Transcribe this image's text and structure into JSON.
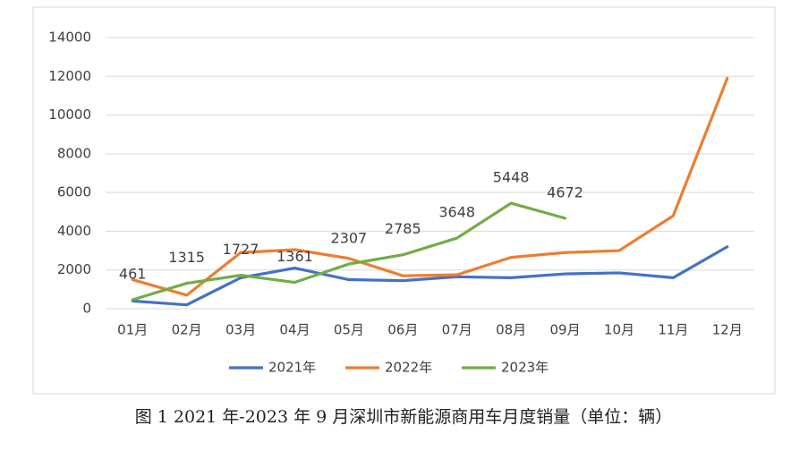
{
  "chart_data": {
    "type": "line",
    "caption": "图 1 2021 年-2023 年 9 月深圳市新能源商用车月度销量（单位：辆）",
    "categories": [
      "01月",
      "02月",
      "03月",
      "04月",
      "05月",
      "06月",
      "07月",
      "08月",
      "09月",
      "10月",
      "11月",
      "12月"
    ],
    "series": [
      {
        "name": "2021年",
        "color": "#4472c4",
        "values": [
          400,
          200,
          1600,
          2100,
          1500,
          1450,
          1650,
          1600,
          1800,
          1850,
          1600,
          3200
        ]
      },
      {
        "name": "2022年",
        "color": "#ed7d31",
        "values": [
          1500,
          700,
          2900,
          3050,
          2600,
          1700,
          1750,
          2650,
          2900,
          3000,
          4800,
          11900
        ]
      },
      {
        "name": "2023年",
        "color": "#70ad47",
        "values": [
          461,
          1315,
          1727,
          1361,
          2307,
          2785,
          3648,
          5448,
          4672,
          null,
          null,
          null
        ],
        "data_labels": true
      }
    ],
    "ylim": [
      0,
      14000
    ],
    "yticks": [
      0,
      2000,
      4000,
      6000,
      8000,
      10000,
      12000,
      14000
    ],
    "grid": true,
    "legend": "bottom"
  }
}
